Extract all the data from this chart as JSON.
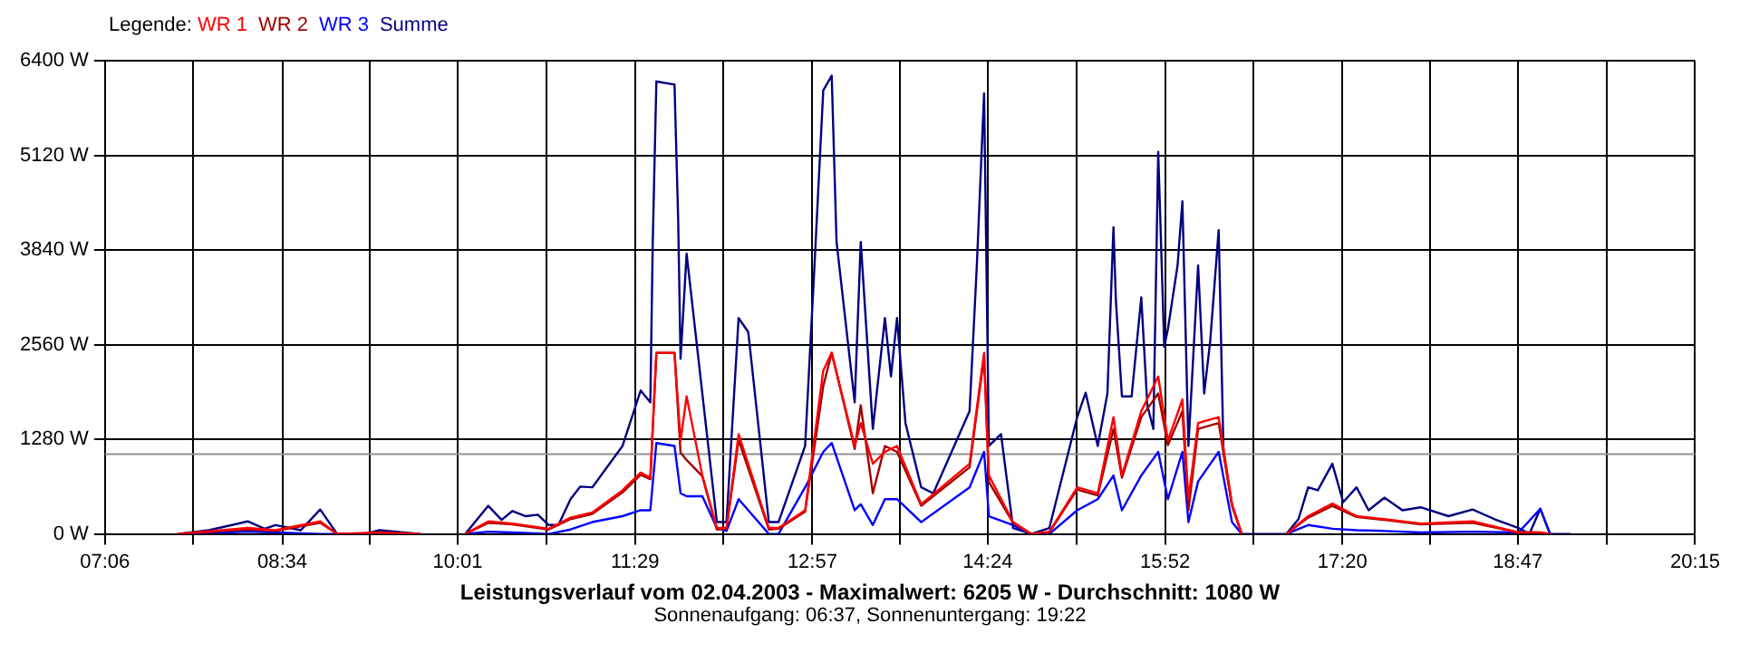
{
  "chart_data": {
    "type": "line",
    "title": "Leistungsverlauf vom 02.04.2003 - Maximalwert: 6205 W - Durchschnitt: 1080 W",
    "subtitle": "Sonnenaufgang: 06:37, Sonnenuntergang: 19:22",
    "legend_title": "Legende:",
    "legend": "top left",
    "grid": true,
    "marker": "none",
    "line_style": "solid",
    "xlim": [
      7.1,
      20.25
    ],
    "xticks": [
      {
        "value": 7.1,
        "label": "07:06"
      },
      {
        "value": 7.8306,
        "label": null
      },
      {
        "value": 8.5667,
        "label": "08:34"
      },
      {
        "value": 9.2917,
        "label": null
      },
      {
        "value": 10.0167,
        "label": "10:01"
      },
      {
        "value": 10.7528,
        "label": null
      },
      {
        "value": 11.4833,
        "label": "11:29"
      },
      {
        "value": 12.2139,
        "label": null
      },
      {
        "value": 12.95,
        "label": "12:57"
      },
      {
        "value": 13.675,
        "label": null
      },
      {
        "value": 14.4,
        "label": "14:24"
      },
      {
        "value": 15.1361,
        "label": null
      },
      {
        "value": 15.8667,
        "label": "15:52"
      },
      {
        "value": 16.5972,
        "label": null
      },
      {
        "value": 17.3333,
        "label": "17:20"
      },
      {
        "value": 18.0583,
        "label": null
      },
      {
        "value": 18.7833,
        "label": "18:47"
      },
      {
        "value": 19.5194,
        "label": null
      },
      {
        "value": 20.25,
        "label": "20:15"
      }
    ],
    "ylim": [
      0,
      6400
    ],
    "yticks": [
      {
        "value": 0,
        "label": "0 W"
      },
      {
        "value": 1280,
        "label": "1280 W"
      },
      {
        "value": 2560,
        "label": "2560 W"
      },
      {
        "value": 3840,
        "label": "3840 W"
      },
      {
        "value": 5120,
        "label": "5120 W"
      },
      {
        "value": 6400,
        "label": "6400 W"
      }
    ],
    "ref_lines": [
      {
        "axis": "y",
        "value": 1080,
        "color": "#909090"
      }
    ],
    "x": [
      7.7,
      8.28,
      8.51,
      8.88,
      9.02,
      9.37,
      9.71,
      9.9,
      10.08,
      10.27,
      10.47,
      10.77,
      10.95,
      11.13,
      11.38,
      11.53,
      11.61,
      11.66,
      11.81,
      11.86,
      11.91,
      12.04,
      12.16,
      12.24,
      12.34,
      12.59,
      12.67,
      12.89,
      13.04,
      13.11,
      13.3,
      13.35,
      13.45,
      13.55,
      13.65,
      13.85,
      14.25,
      14.37,
      14.41,
      14.61,
      14.76,
      14.91,
      15.14,
      15.31,
      15.44,
      15.51,
      15.67,
      15.81,
      15.89,
      16.01,
      16.06,
      16.14,
      16.31,
      16.42,
      16.5,
      16.62,
      16.87,
      17.05,
      17.25,
      17.45,
      17.68,
      17.98,
      18.41,
      18.79,
      18.97,
      19.05
    ],
    "series": [
      {
        "name": "WR 1",
        "color": "#ff0000",
        "values": [
          0,
          80,
          50,
          170,
          0,
          20,
          0,
          null,
          0,
          170,
          140,
          70,
          220,
          290,
          590,
          830,
          760,
          2450,
          2450,
          1260,
          1860,
          790,
          80,
          80,
          1350,
          80,
          80,
          320,
          2210,
          2450,
          1190,
          1500,
          950,
          1110,
          1190,
          400,
          950,
          2450,
          790,
          160,
          0,
          30,
          630,
          550,
          1580,
          790,
          1660,
          2130,
          1260,
          1820,
          470,
          1500,
          1580,
          400,
          0,
          null,
          0,
          240,
          410,
          240,
          200,
          140,
          170,
          20,
          20,
          0
        ]
      },
      {
        "name": "WR 2",
        "color": "#a00000",
        "values": [
          0,
          60,
          40,
          150,
          0,
          10,
          0,
          null,
          0,
          150,
          130,
          60,
          200,
          270,
          560,
          800,
          740,
          2450,
          2450,
          1100,
          1000,
          780,
          60,
          70,
          1270,
          60,
          70,
          300,
          2000,
          2450,
          1150,
          1740,
          550,
          1190,
          1110,
          380,
          900,
          2400,
          700,
          150,
          0,
          20,
          600,
          520,
          1420,
          760,
          1580,
          1900,
          1200,
          1660,
          320,
          1420,
          1500,
          380,
          0,
          null,
          0,
          220,
          380,
          230,
          190,
          130,
          150,
          20,
          20,
          0
        ]
      },
      {
        "name": "WR 3",
        "color": "#0000ff",
        "values": [
          0,
          30,
          20,
          0,
          0,
          0,
          0,
          null,
          0,
          30,
          20,
          0,
          60,
          160,
          240,
          320,
          320,
          1230,
          1190,
          550,
          510,
          510,
          80,
          40,
          470,
          0,
          0,
          630,
          1110,
          1230,
          320,
          400,
          120,
          470,
          470,
          160,
          630,
          1110,
          240,
          120,
          0,
          0,
          320,
          470,
          790,
          320,
          790,
          1110,
          470,
          1110,
          160,
          710,
          1110,
          160,
          0,
          null,
          0,
          120,
          70,
          50,
          40,
          20,
          30,
          20,
          340,
          0
        ]
      },
      {
        "name": "Summe",
        "color": "#000080",
        "x": [
          7.7,
          7.96,
          8.28,
          8.42,
          8.51,
          8.72,
          8.88,
          9.02,
          9.25,
          9.37,
          9.71,
          9.9,
          10.08,
          10.27,
          10.38,
          10.47,
          10.58,
          10.68,
          10.77,
          10.85,
          10.95,
          11.03,
          11.13,
          11.38,
          11.53,
          11.61,
          11.63,
          11.66,
          11.81,
          11.84,
          11.86,
          11.91,
          12.04,
          12.16,
          12.24,
          12.34,
          12.42,
          12.59,
          12.67,
          12.89,
          12.97,
          13.04,
          13.11,
          13.15,
          13.3,
          13.35,
          13.45,
          13.55,
          13.6,
          13.65,
          13.72,
          13.85,
          13.95,
          14.25,
          14.31,
          14.37,
          14.41,
          14.51,
          14.61,
          14.76,
          14.91,
          15.14,
          15.21,
          15.31,
          15.39,
          15.44,
          15.46,
          15.51,
          15.59,
          15.67,
          15.72,
          15.77,
          15.81,
          15.86,
          15.89,
          15.97,
          16.01,
          16.06,
          16.14,
          16.19,
          16.24,
          16.31,
          16.35,
          16.42,
          16.5,
          16.62,
          16.87,
          16.97,
          17.05,
          17.13,
          17.25,
          17.34,
          17.45,
          17.55,
          17.68,
          17.83,
          17.98,
          18.21,
          18.41,
          18.59,
          18.79,
          18.88,
          18.97,
          19.05,
          19.22
        ],
        "values": [
          0,
          50,
          170,
          70,
          120,
          50,
          330,
          0,
          0,
          50,
          0,
          null,
          0,
          380,
          190,
          310,
          240,
          260,
          120,
          120,
          470,
          640,
          630,
          1190,
          1940,
          1780,
          3950,
          6120,
          6080,
          4270,
          2370,
          3790,
          1900,
          160,
          160,
          2920,
          2730,
          160,
          160,
          1190,
          3710,
          6000,
          6200,
          3950,
          1780,
          3950,
          1420,
          2920,
          2130,
          2920,
          1500,
          630,
          550,
          1660,
          3630,
          5960,
          1190,
          1350,
          80,
          0,
          80,
          1580,
          1910,
          1190,
          1900,
          4150,
          3160,
          1860,
          1860,
          3200,
          1740,
          1420,
          5170,
          2530,
          2770,
          3630,
          4500,
          1190,
          3630,
          1900,
          2610,
          4110,
          1110,
          400,
          0,
          0,
          0,
          200,
          630,
          590,
          950,
          430,
          630,
          320,
          490,
          320,
          360,
          240,
          330,
          200,
          80,
          0,
          340,
          0,
          0
        ]
      }
    ]
  }
}
